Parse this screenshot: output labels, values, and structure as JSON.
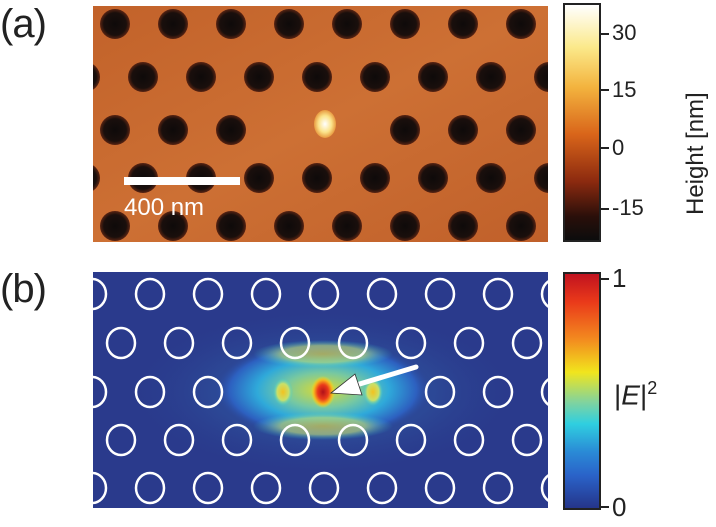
{
  "panel_a": {
    "label": "(a)",
    "scalebar_label": "400 nm",
    "colorbar": {
      "title": "Height [nm]",
      "ticks": [
        "30",
        "15",
        "0",
        "-15"
      ],
      "colors": [
        "#ffffff",
        "#f7d24a",
        "#d9651a",
        "#7a1a0a",
        "#111111"
      ]
    },
    "background_color": "#c86a2a",
    "hole_color": "#120e0e"
  },
  "panel_b": {
    "label": "(b)",
    "colorbar": {
      "title_main": "|E|",
      "title_sup": "2",
      "ticks": [
        "1",
        "0"
      ],
      "colors": [
        "#c1121f",
        "#f38b1f",
        "#f1e51d",
        "#2fcfe0",
        "#2a63c9",
        "#25358a"
      ]
    },
    "background_color": "#2a3a8c",
    "outline_color": "#ffffff",
    "arrow_color": "#ffffff"
  }
}
